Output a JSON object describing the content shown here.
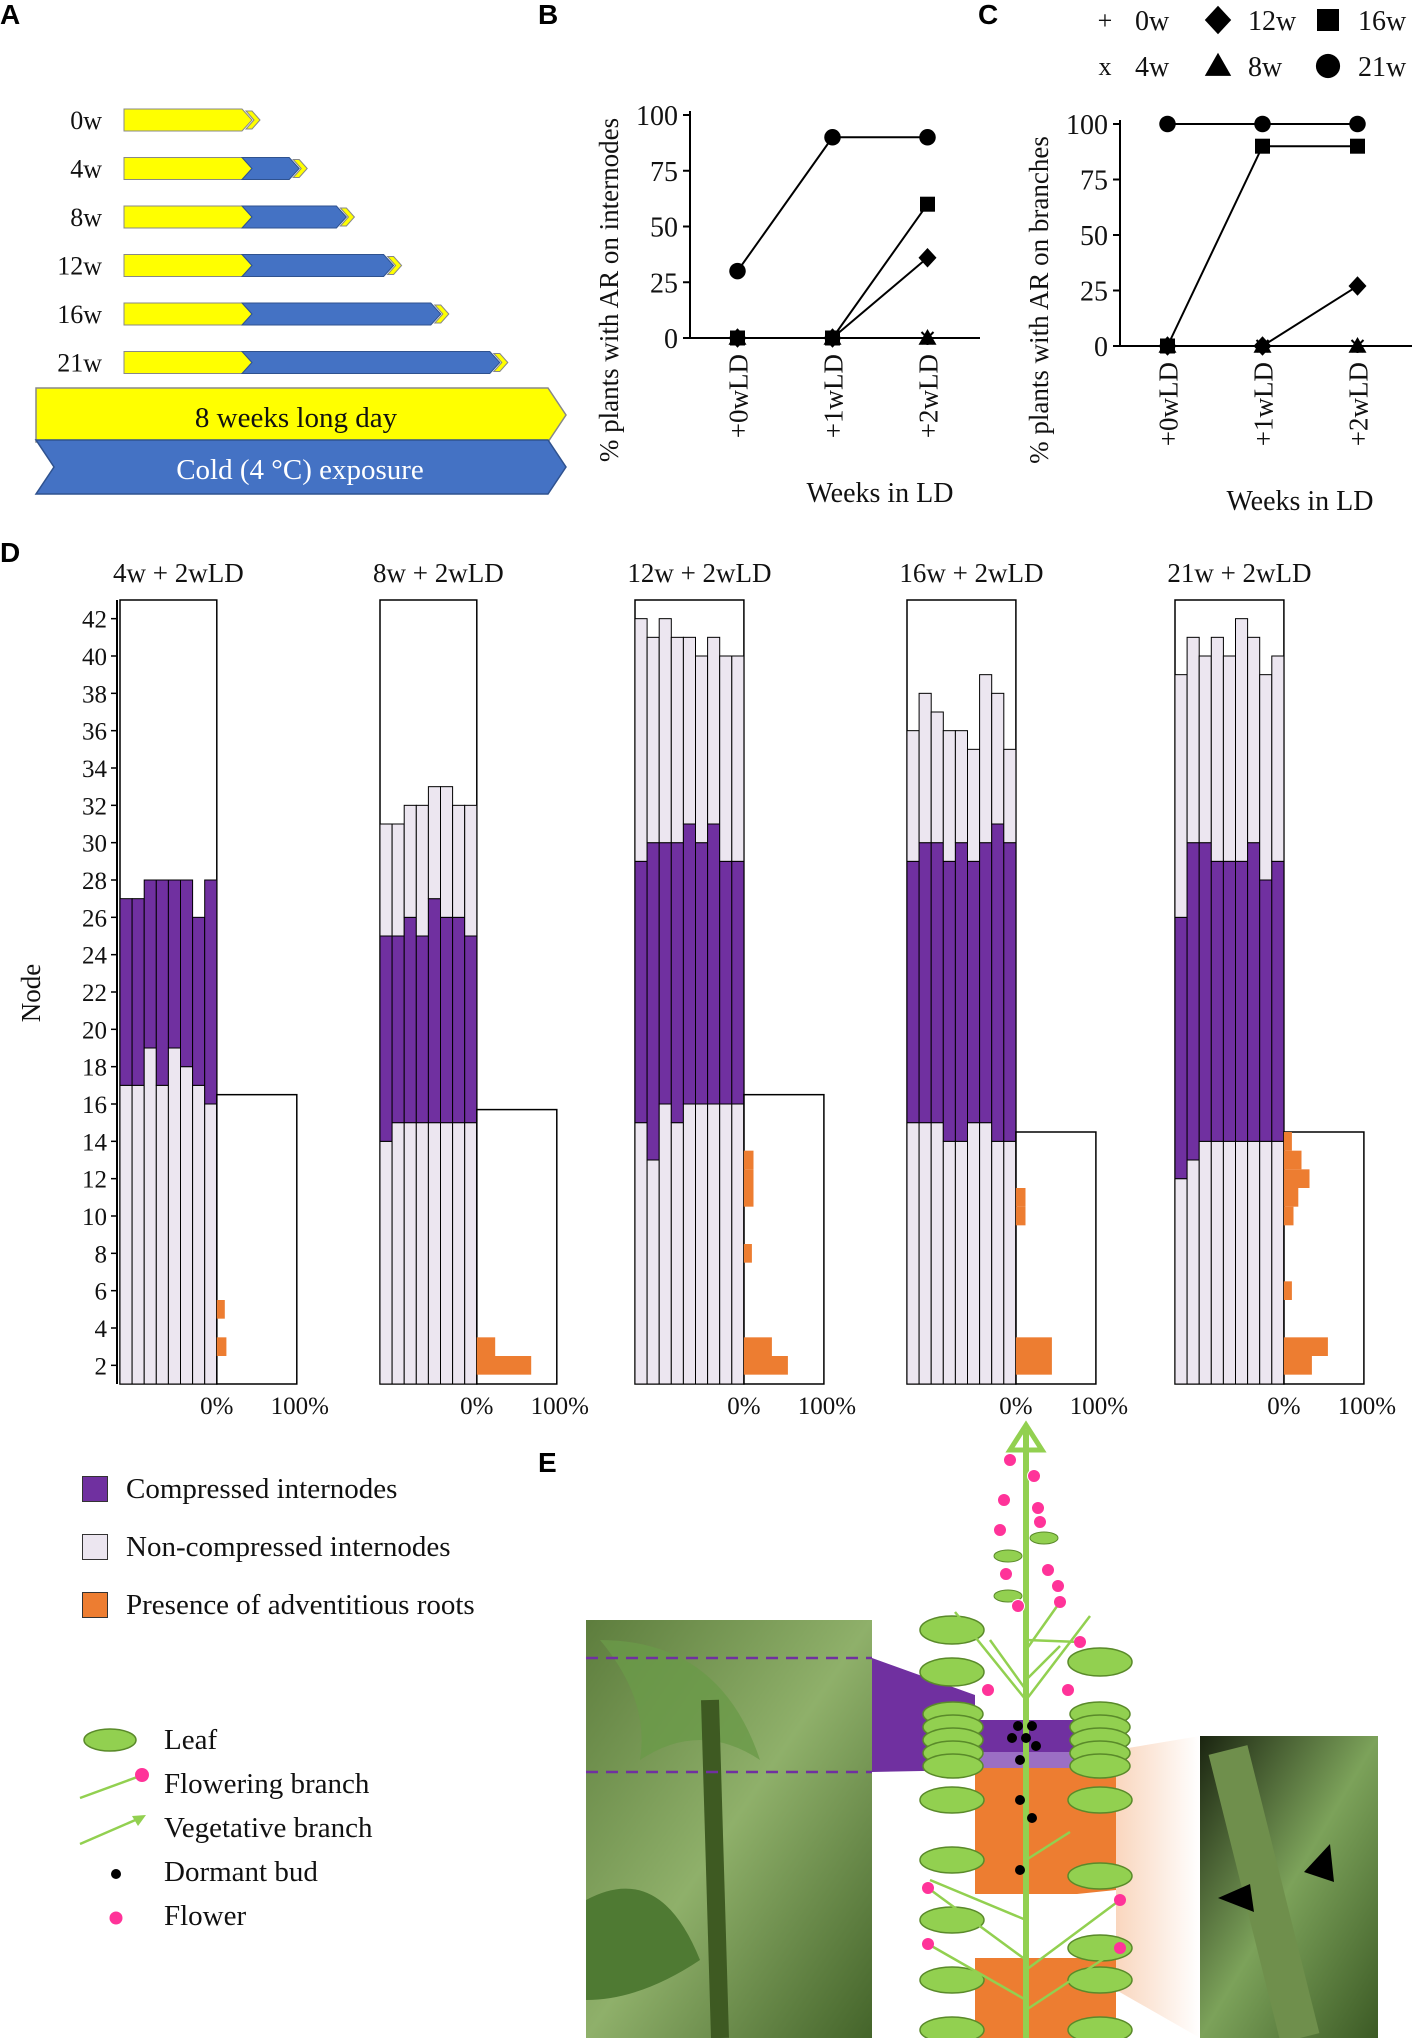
{
  "panels": {
    "A": "A",
    "B": "B",
    "C": "C",
    "D": "D",
    "E": "E"
  },
  "panel_a": {
    "rows": [
      {
        "label": "0w",
        "cold_weeks": 0
      },
      {
        "label": "4w",
        "cold_weeks": 4
      },
      {
        "label": "8w",
        "cold_weeks": 8
      },
      {
        "label": "12w",
        "cold_weeks": 12
      },
      {
        "label": "16w",
        "cold_weeks": 16
      },
      {
        "label": "21w",
        "cold_weeks": 21
      }
    ],
    "long_day_label": "8 weeks long day",
    "cold_label": "Cold (4 °C) exposure",
    "colors": {
      "long_day": "#ffff00",
      "cold": "#4472c4"
    }
  },
  "panel_bc_legend": [
    {
      "symbol": "+",
      "label": "0w"
    },
    {
      "symbol": "diamond",
      "label": "12w"
    },
    {
      "symbol": "square",
      "label": "16w"
    },
    {
      "symbol": "x",
      "label": "4w"
    },
    {
      "symbol": "triangle",
      "label": "8w"
    },
    {
      "symbol": "circle",
      "label": "21w"
    }
  ],
  "chart_data": [
    {
      "id": "B",
      "type": "line",
      "categories": [
        "+0wLD",
        "+1wLD",
        "+2wLD"
      ],
      "xlabel": "Weeks in LD",
      "ylabel": "% plants with AR on internodes",
      "yticks": [
        0,
        25,
        50,
        75,
        100
      ],
      "ylim": [
        0,
        100
      ],
      "series": [
        {
          "name": "0w",
          "marker": "plus",
          "values": [
            0,
            0,
            0
          ]
        },
        {
          "name": "4w",
          "marker": "x",
          "values": [
            0,
            0,
            0
          ]
        },
        {
          "name": "8w",
          "marker": "triangle",
          "values": [
            0,
            0,
            0
          ]
        },
        {
          "name": "12w",
          "marker": "diamond",
          "values": [
            0,
            0,
            36
          ]
        },
        {
          "name": "16w",
          "marker": "square",
          "values": [
            0,
            0,
            60
          ]
        },
        {
          "name": "21w",
          "marker": "circle",
          "values": [
            30,
            90,
            90
          ]
        }
      ]
    },
    {
      "id": "C",
      "type": "line",
      "categories": [
        "+0wLD",
        "+1wLD",
        "+2wLD"
      ],
      "xlabel": "Weeks in LD",
      "ylabel": "% plants with AR on branches",
      "yticks": [
        0,
        25,
        50,
        75,
        100
      ],
      "ylim": [
        0,
        100
      ],
      "series": [
        {
          "name": "0w",
          "marker": "plus",
          "values": [
            0,
            0,
            0
          ]
        },
        {
          "name": "4w",
          "marker": "x",
          "values": [
            0,
            0,
            0
          ]
        },
        {
          "name": "8w",
          "marker": "triangle",
          "values": [
            0,
            0,
            0
          ]
        },
        {
          "name": "12w",
          "marker": "diamond",
          "values": [
            0,
            0,
            27
          ]
        },
        {
          "name": "16w",
          "marker": "square",
          "values": [
            0,
            90,
            90
          ]
        },
        {
          "name": "21w",
          "marker": "circle",
          "values": [
            100,
            100,
            100
          ]
        }
      ]
    },
    {
      "id": "D",
      "type": "bar",
      "ylabel": "Node",
      "ylim": [
        1,
        43
      ],
      "yticks": [
        2,
        4,
        6,
        8,
        10,
        12,
        14,
        16,
        18,
        20,
        22,
        24,
        26,
        28,
        30,
        32,
        34,
        36,
        38,
        40,
        42
      ],
      "hist_ticks": [
        "0%",
        "100%"
      ],
      "groups": [
        {
          "title": "4w + 2wLD",
          "plants": [
            {
              "comp_start": 17,
              "comp_end": 27,
              "top": 27
            },
            {
              "comp_start": 17,
              "comp_end": 27,
              "top": 27
            },
            {
              "comp_start": 19,
              "comp_end": 28,
              "top": 28
            },
            {
              "comp_start": 17,
              "comp_end": 28,
              "top": 28
            },
            {
              "comp_start": 19,
              "comp_end": 28,
              "top": 28
            },
            {
              "comp_start": 18,
              "comp_end": 28,
              "top": 28
            },
            {
              "comp_start": 17,
              "comp_end": 26,
              "top": 26
            },
            {
              "comp_start": 16,
              "comp_end": 28,
              "top": 28
            }
          ],
          "box_top": 43,
          "hist_top": 16.5,
          "ar_hist": [
            {
              "node": 3,
              "pct": 12
            },
            {
              "node": 5,
              "pct": 10
            }
          ]
        },
        {
          "title": "8w + 2wLD",
          "plants": [
            {
              "comp_start": 14,
              "comp_end": 25,
              "top": 31
            },
            {
              "comp_start": 15,
              "comp_end": 25,
              "top": 31
            },
            {
              "comp_start": 15,
              "comp_end": 26,
              "top": 32
            },
            {
              "comp_start": 15,
              "comp_end": 25,
              "top": 32
            },
            {
              "comp_start": 15,
              "comp_end": 27,
              "top": 33
            },
            {
              "comp_start": 15,
              "comp_end": 26,
              "top": 33
            },
            {
              "comp_start": 15,
              "comp_end": 26,
              "top": 32
            },
            {
              "comp_start": 15,
              "comp_end": 25,
              "top": 32
            }
          ],
          "box_top": 43,
          "hist_top": 15.7,
          "ar_hist": [
            {
              "node": 2,
              "pct": 68
            },
            {
              "node": 3,
              "pct": 23
            }
          ]
        },
        {
          "title": "12w + 2wLD",
          "plants": [
            {
              "comp_start": 15,
              "comp_end": 29,
              "top": 42
            },
            {
              "comp_start": 13,
              "comp_end": 30,
              "top": 41
            },
            {
              "comp_start": 16,
              "comp_end": 30,
              "top": 42
            },
            {
              "comp_start": 15,
              "comp_end": 30,
              "top": 41
            },
            {
              "comp_start": 16,
              "comp_end": 31,
              "top": 41
            },
            {
              "comp_start": 16,
              "comp_end": 30,
              "top": 40
            },
            {
              "comp_start": 16,
              "comp_end": 31,
              "top": 41
            },
            {
              "comp_start": 16,
              "comp_end": 29,
              "top": 40
            },
            {
              "comp_start": 16,
              "comp_end": 29,
              "top": 40
            }
          ],
          "box_top": 43,
          "hist_top": 16.5,
          "ar_hist": [
            {
              "node": 2,
              "pct": 55
            },
            {
              "node": 3,
              "pct": 35
            },
            {
              "node": 8,
              "pct": 10
            },
            {
              "node": 11,
              "pct": 12
            },
            {
              "node": 12,
              "pct": 12
            },
            {
              "node": 13,
              "pct": 12
            }
          ]
        },
        {
          "title": "16w + 2wLD",
          "plants": [
            {
              "comp_start": 15,
              "comp_end": 29,
              "top": 36
            },
            {
              "comp_start": 15,
              "comp_end": 30,
              "top": 38
            },
            {
              "comp_start": 15,
              "comp_end": 30,
              "top": 37
            },
            {
              "comp_start": 14,
              "comp_end": 29,
              "top": 36
            },
            {
              "comp_start": 14,
              "comp_end": 30,
              "top": 36
            },
            {
              "comp_start": 15,
              "comp_end": 29,
              "top": 35
            },
            {
              "comp_start": 15,
              "comp_end": 30,
              "top": 39
            },
            {
              "comp_start": 14,
              "comp_end": 31,
              "top": 38
            },
            {
              "comp_start": 14,
              "comp_end": 30,
              "top": 35
            }
          ],
          "box_top": 43,
          "hist_top": 14.5,
          "ar_hist": [
            {
              "node": 2,
              "pct": 45
            },
            {
              "node": 3,
              "pct": 45
            },
            {
              "node": 10,
              "pct": 12
            },
            {
              "node": 11,
              "pct": 12
            }
          ]
        },
        {
          "title": "21w + 2wLD",
          "plants": [
            {
              "comp_start": 12,
              "comp_end": 26,
              "top": 39
            },
            {
              "comp_start": 13,
              "comp_end": 30,
              "top": 41
            },
            {
              "comp_start": 14,
              "comp_end": 30,
              "top": 40
            },
            {
              "comp_start": 14,
              "comp_end": 29,
              "top": 41
            },
            {
              "comp_start": 14,
              "comp_end": 29,
              "top": 40
            },
            {
              "comp_start": 14,
              "comp_end": 29,
              "top": 42
            },
            {
              "comp_start": 14,
              "comp_end": 30,
              "top": 41
            },
            {
              "comp_start": 14,
              "comp_end": 28,
              "top": 39
            },
            {
              "comp_start": 14,
              "comp_end": 29,
              "top": 40
            }
          ],
          "box_top": 43,
          "hist_top": 14.5,
          "ar_hist": [
            {
              "node": 2,
              "pct": 35
            },
            {
              "node": 3,
              "pct": 55
            },
            {
              "node": 6,
              "pct": 10
            },
            {
              "node": 10,
              "pct": 12
            },
            {
              "node": 11,
              "pct": 18
            },
            {
              "node": 12,
              "pct": 32
            },
            {
              "node": 13,
              "pct": 22
            },
            {
              "node": 14,
              "pct": 10
            }
          ]
        }
      ]
    }
  ],
  "legend_d": [
    {
      "label": "Compressed internodes",
      "color": "#7030a0"
    },
    {
      "label": "Non-compressed internodes",
      "color": "#ece6f0"
    },
    {
      "label": "Presence of adventitious roots",
      "color": "#ed7d31"
    }
  ],
  "legend_e": [
    {
      "label": "Leaf",
      "icon": "leaf-icon"
    },
    {
      "label": "Flowering branch",
      "icon": "flowering-branch-icon"
    },
    {
      "label": "Vegetative branch",
      "icon": "vegetative-branch-icon"
    },
    {
      "label": "Dormant bud",
      "icon": "dormant-bud-icon"
    },
    {
      "label": "Flower",
      "icon": "flower-icon"
    }
  ],
  "colors": {
    "compressed": "#7030a0",
    "non_compressed": "#ece6f0",
    "ar": "#ed7d31",
    "leaf": "#92d050",
    "stem": "#92d050",
    "flower": "#ff3399"
  }
}
